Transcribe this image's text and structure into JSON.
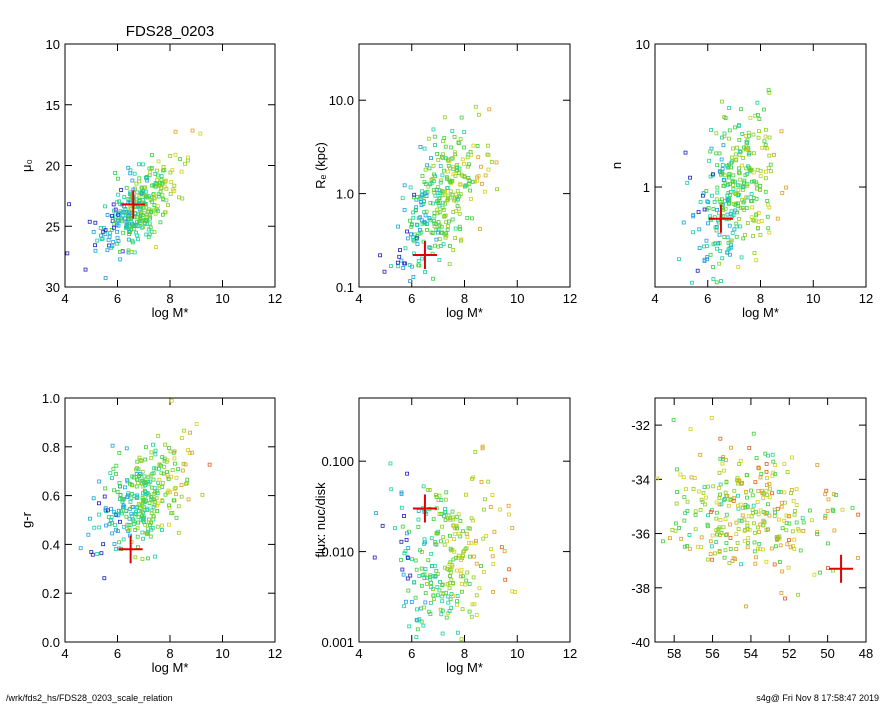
{
  "footer": {
    "path": "/wrk/fds2_hs/FDS28_0203_scale_relation",
    "stamp": "s4g@  Fri Nov  8 17:58:47 2019"
  },
  "chart_data": [
    {
      "type": "scatter",
      "title": "FDS28_0203",
      "xlabel": "log M*",
      "ylabel": "μ₀",
      "xlim": [
        4,
        12
      ],
      "ylim": [
        30,
        10
      ],
      "yscale": "linear",
      "xreverse": false,
      "xticks": [
        4,
        6,
        8,
        10,
        12
      ],
      "xtick_labels": [
        "4",
        "6",
        "8",
        "10",
        "12"
      ],
      "yticks": [
        10,
        15,
        20,
        25,
        30
      ],
      "ytick_labels": [
        "10",
        "15",
        "20",
        "25",
        "30"
      ],
      "cloud": {
        "center": [
          6.7,
          24
        ],
        "spread": [
          0.75,
          1.5
        ],
        "count": 320,
        "trend": [
          [
            5.5,
            25.5
          ],
          [
            7.5,
            22.5
          ],
          [
            9.5,
            17
          ],
          [
            11.5,
            9.5
          ]
        ]
      },
      "marker": {
        "x": 6.6,
        "y": 23.2,
        "color": "#e00000"
      }
    },
    {
      "type": "scatter",
      "title": "",
      "xlabel": "log M*",
      "ylabel": "Rₑ (kpc)",
      "xlim": [
        4,
        12
      ],
      "ylim": [
        0.1,
        40
      ],
      "yscale": "log",
      "xreverse": false,
      "xticks": [
        4,
        6,
        8,
        10,
        12
      ],
      "xtick_labels": [
        "4",
        "6",
        "8",
        "10",
        "12"
      ],
      "yticks": [
        0.1,
        1.0,
        10.0
      ],
      "ytick_labels": [
        "0.1",
        "1.0",
        "10.0"
      ],
      "cloud": {
        "center": [
          7.0,
          0.8
        ],
        "spread": [
          0.8,
          0.35
        ],
        "count": 320,
        "trend": [
          [
            5.5,
            0.3
          ],
          [
            7.5,
            1.0
          ],
          [
            9.5,
            3.0
          ],
          [
            11.5,
            20
          ]
        ]
      },
      "marker": {
        "x": 6.5,
        "y": 0.22,
        "color": "#e00000"
      }
    },
    {
      "type": "scatter",
      "title": "",
      "xlabel": "log M*",
      "ylabel": "n",
      "xlim": [
        4,
        12
      ],
      "ylim": [
        0.2,
        10
      ],
      "yscale": "log",
      "xreverse": false,
      "xticks": [
        4,
        6,
        8,
        10,
        12
      ],
      "xtick_labels": [
        "4",
        "6",
        "8",
        "10",
        "12"
      ],
      "yticks": [
        1,
        10
      ],
      "ytick_labels": [
        "1",
        "10"
      ],
      "cloud": {
        "center": [
          7.0,
          1.0
        ],
        "spread": [
          0.8,
          0.25
        ],
        "count": 320,
        "trend": [
          [
            5.5,
            0.5
          ],
          [
            7.5,
            1.1
          ],
          [
            9.5,
            1.8
          ],
          [
            11.5,
            5.5
          ]
        ]
      },
      "marker": {
        "x": 6.5,
        "y": 0.6,
        "color": "#e00000"
      }
    },
    {
      "type": "scatter",
      "title": "",
      "xlabel": "log M*",
      "ylabel": "g-r",
      "xlim": [
        4,
        12
      ],
      "ylim": [
        0.0,
        1.0
      ],
      "yscale": "linear",
      "xreverse": false,
      "xticks": [
        4,
        6,
        8,
        10,
        12
      ],
      "xtick_labels": [
        "4",
        "6",
        "8",
        "10",
        "12"
      ],
      "yticks": [
        0.0,
        0.2,
        0.4,
        0.6,
        0.8,
        1.0
      ],
      "ytick_labels": [
        "0.0",
        "0.2",
        "0.4",
        "0.6",
        "0.8",
        "1.0"
      ],
      "cloud": {
        "center": [
          7.0,
          0.58
        ],
        "spread": [
          0.8,
          0.1
        ],
        "count": 320,
        "trend": [
          [
            5.5,
            0.5
          ],
          [
            7.5,
            0.62
          ],
          [
            9.5,
            0.72
          ],
          [
            11.5,
            0.82
          ]
        ]
      },
      "marker": {
        "x": 6.5,
        "y": 0.38,
        "color": "#e00000"
      }
    },
    {
      "type": "scatter",
      "title": "",
      "xlabel": "log M*",
      "ylabel": "flux: nuc/disk",
      "xlim": [
        4,
        12
      ],
      "ylim": [
        0.001,
        0.5
      ],
      "yscale": "log",
      "xreverse": false,
      "xticks": [
        4,
        6,
        8,
        10,
        12
      ],
      "xtick_labels": [
        "4",
        "6",
        "8",
        "10",
        "12"
      ],
      "yticks": [
        0.001,
        0.01,
        0.1
      ],
      "ytick_labels": [
        "0.001",
        "0.010",
        "0.100"
      ],
      "cloud": {
        "center": [
          7.3,
          0.008
        ],
        "spread": [
          1.0,
          0.5
        ],
        "count": 280,
        "trend": []
      },
      "marker": {
        "x": 6.5,
        "y": 0.03,
        "color": "#e00000"
      }
    },
    {
      "type": "scatter",
      "title": "",
      "xlabel": "",
      "ylabel": "",
      "xlim": [
        59,
        48
      ],
      "ylim": [
        -40,
        -31
      ],
      "yscale": "linear",
      "xreverse": true,
      "xticks": [
        58,
        56,
        54,
        52,
        50,
        48
      ],
      "xtick_labels": [
        "58",
        "56",
        "54",
        "52",
        "50",
        "48"
      ],
      "yticks": [
        -40,
        -38,
        -36,
        -34,
        -32
      ],
      "ytick_labels": [
        "-40",
        "-38",
        "-36",
        "-34",
        "-32"
      ],
      "cloud": {
        "center": [
          54,
          -35.3
        ],
        "spread": [
          2.0,
          1.2
        ],
        "count": 320,
        "trend": []
      },
      "marker": {
        "x": 49.3,
        "y": -37.3,
        "color": "#e00000"
      }
    }
  ]
}
